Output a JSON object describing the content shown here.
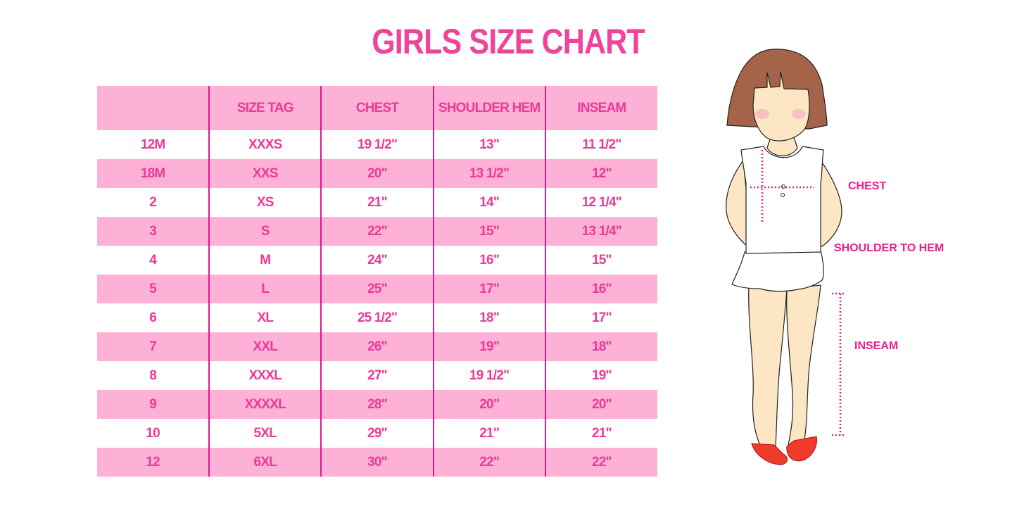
{
  "title": "GIRLS SIZE CHART",
  "colors": {
    "accent": "#ec3a96",
    "row_pink": "#fdb1d6",
    "divider": "#e0168b",
    "hair": "#a5634a",
    "skin": "#fde6c3",
    "shoe": "#ef3b2c"
  },
  "table": {
    "headers": [
      "",
      "SIZE TAG",
      "CHEST",
      "SHOULDER HEM",
      "INSEAM"
    ],
    "rows": [
      [
        "12M",
        "XXXS",
        "19 1/2\"",
        "13\"",
        "11 1/2\""
      ],
      [
        "18M",
        "XXS",
        "20\"",
        "13 1/2\"",
        "12\""
      ],
      [
        "2",
        "XS",
        "21\"",
        "14\"",
        "12 1/4\""
      ],
      [
        "3",
        "S",
        "22\"",
        "15\"",
        "13 1/4\""
      ],
      [
        "4",
        "M",
        "24\"",
        "16\"",
        "15\""
      ],
      [
        "5",
        "L",
        "25\"",
        "17\"",
        "16\""
      ],
      [
        "6",
        "XL",
        "25 1/2\"",
        "18\"",
        "17\""
      ],
      [
        "7",
        "XXL",
        "26\"",
        "19\"",
        "18\""
      ],
      [
        "8",
        "XXXL",
        "27\"",
        "19 1/2\"",
        "19\""
      ],
      [
        "9",
        "XXXXL",
        "28\"",
        "20\"",
        "20\""
      ],
      [
        "10",
        "5XL",
        "29\"",
        "21\"",
        "21\""
      ],
      [
        "12",
        "6XL",
        "30\"",
        "22\"",
        "22\""
      ]
    ]
  },
  "illustration": {
    "labels": {
      "chest": "CHEST",
      "shoulder_to_hem": "SHOULDER TO HEM",
      "inseam": "INSEAM"
    }
  }
}
